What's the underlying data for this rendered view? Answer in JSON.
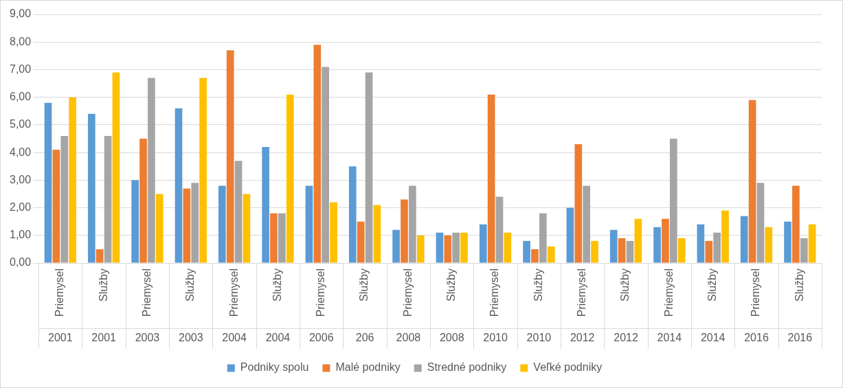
{
  "chart_data": {
    "type": "bar",
    "categories": [
      "Priemysel\n2001",
      "Služby\n2001",
      "Priemysel\n2003",
      "Služby\n2003",
      "Priemysel\n2004",
      "Služby\n2004",
      "Priemysel\n2006",
      "Služby\n206",
      "Priemysel\n2008",
      "Služby\n2008",
      "Priemysel\n2010",
      "Služby\n2010",
      "Priemysel\n2012",
      "Služby\n2012",
      "Priemysel\n2014",
      "Služby\n2014",
      "Priemysel\n2016",
      "Služby\n2016"
    ],
    "series": [
      {
        "name": "Podniky spolu",
        "color": "#5b9bd5",
        "values": [
          5.8,
          5.4,
          3.0,
          5.6,
          2.8,
          4.2,
          2.8,
          3.5,
          1.2,
          1.1,
          1.4,
          0.8,
          2.0,
          1.2,
          1.3,
          1.4,
          1.7,
          1.5
        ]
      },
      {
        "name": "Malé podniky",
        "color": "#ed7d31",
        "values": [
          4.1,
          0.5,
          4.5,
          2.7,
          7.7,
          1.8,
          7.9,
          1.5,
          2.3,
          1.0,
          6.1,
          0.5,
          4.3,
          0.9,
          1.6,
          0.8,
          5.9,
          2.8
        ]
      },
      {
        "name": "Stredné podniky",
        "color": "#a5a5a5",
        "values": [
          4.6,
          4.6,
          6.7,
          2.9,
          3.7,
          1.8,
          7.1,
          6.9,
          2.8,
          1.1,
          2.4,
          1.8,
          2.8,
          0.8,
          4.5,
          1.1,
          2.9,
          0.9
        ]
      },
      {
        "name": "Veľké podniky",
        "color": "#ffc000",
        "values": [
          6.0,
          6.9,
          2.5,
          6.7,
          2.5,
          6.1,
          2.2,
          2.1,
          1.0,
          1.1,
          1.1,
          0.6,
          0.8,
          1.6,
          0.9,
          1.9,
          1.3,
          1.4
        ]
      }
    ],
    "ylim": [
      0,
      9
    ],
    "yticks": [
      {
        "value": 0,
        "label": "0,00"
      },
      {
        "value": 1,
        "label": "1,00"
      },
      {
        "value": 2,
        "label": "2,00"
      },
      {
        "value": 3,
        "label": "3,00"
      },
      {
        "value": 4,
        "label": "4,00"
      },
      {
        "value": 5,
        "label": "5,00"
      },
      {
        "value": 6,
        "label": "6,00"
      },
      {
        "value": 7,
        "label": "7,00"
      },
      {
        "value": 8,
        "label": "8,00"
      },
      {
        "value": 9,
        "label": "9,00"
      }
    ],
    "grid": "y",
    "legend": "bottom"
  }
}
